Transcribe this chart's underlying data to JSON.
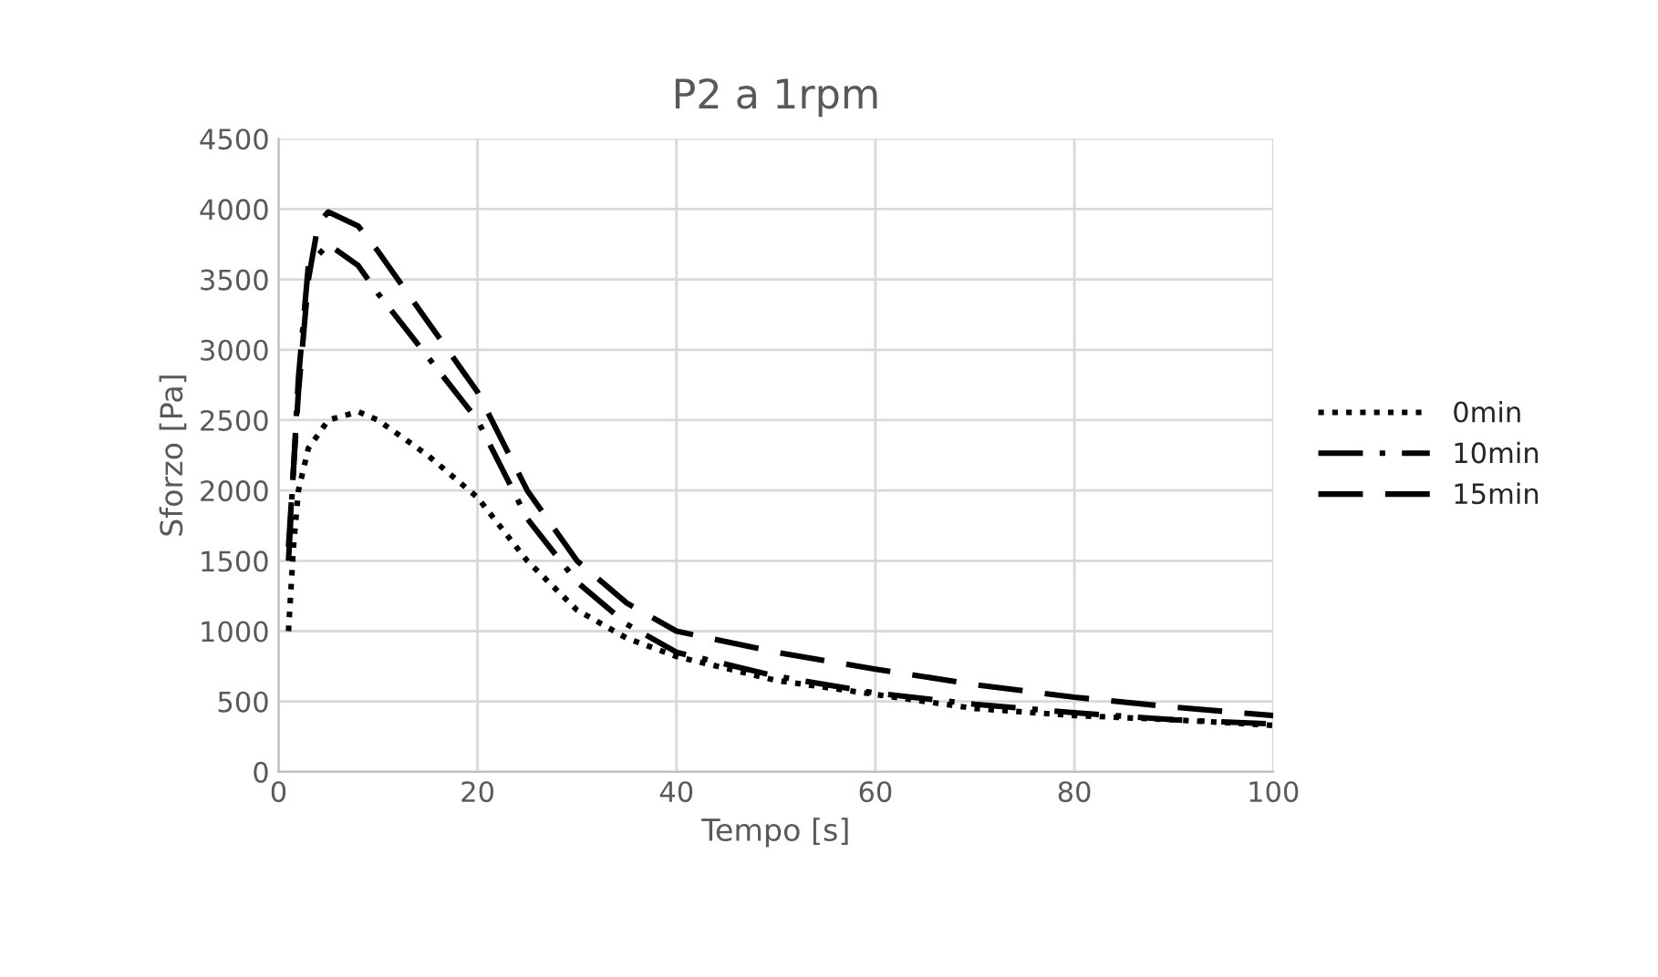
{
  "chart_data": {
    "type": "line",
    "title": "P2 a 1rpm",
    "xlabel": "Tempo [s]",
    "ylabel": "Sforzo [Pa]",
    "xlim": [
      0,
      100
    ],
    "xticks": [
      0,
      20,
      40,
      60,
      80,
      100
    ],
    "ylim": [
      0,
      4500
    ],
    "yticks": [
      0,
      500,
      1000,
      1500,
      2000,
      2500,
      3000,
      3500,
      4000,
      4500
    ],
    "grid": true,
    "legend": "right",
    "marker": "none",
    "series": [
      {
        "name": "0min",
        "color": "#000000",
        "line_style": "dotted",
        "x": [
          1,
          1.5,
          2,
          3,
          5,
          8,
          10,
          15,
          20,
          25,
          30,
          35,
          40,
          50,
          60,
          70,
          80,
          90,
          100
        ],
        "values": [
          1000,
          1600,
          2000,
          2300,
          2500,
          2560,
          2500,
          2250,
          1950,
          1500,
          1150,
          950,
          820,
          650,
          550,
          450,
          400,
          370,
          330
        ]
      },
      {
        "name": "10min",
        "color": "#000000",
        "line_style": "dashdot",
        "x": [
          1,
          2,
          3,
          5,
          8,
          10,
          15,
          20,
          25,
          30,
          35,
          40,
          50,
          60,
          70,
          80,
          90,
          100
        ],
        "values": [
          1500,
          2800,
          3600,
          3750,
          3600,
          3400,
          2950,
          2500,
          1800,
          1350,
          1050,
          850,
          680,
          560,
          480,
          420,
          370,
          340
        ]
      },
      {
        "name": "15min",
        "color": "#000000",
        "line_style": "dashed",
        "x": [
          1,
          2,
          3,
          4,
          5,
          8,
          10,
          15,
          20,
          25,
          30,
          35,
          40,
          50,
          60,
          70,
          80,
          90,
          100
        ],
        "values": [
          1600,
          2700,
          3500,
          3900,
          3980,
          3880,
          3700,
          3200,
          2700,
          2000,
          1500,
          1200,
          1000,
          850,
          730,
          620,
          530,
          460,
          400
        ]
      }
    ]
  }
}
